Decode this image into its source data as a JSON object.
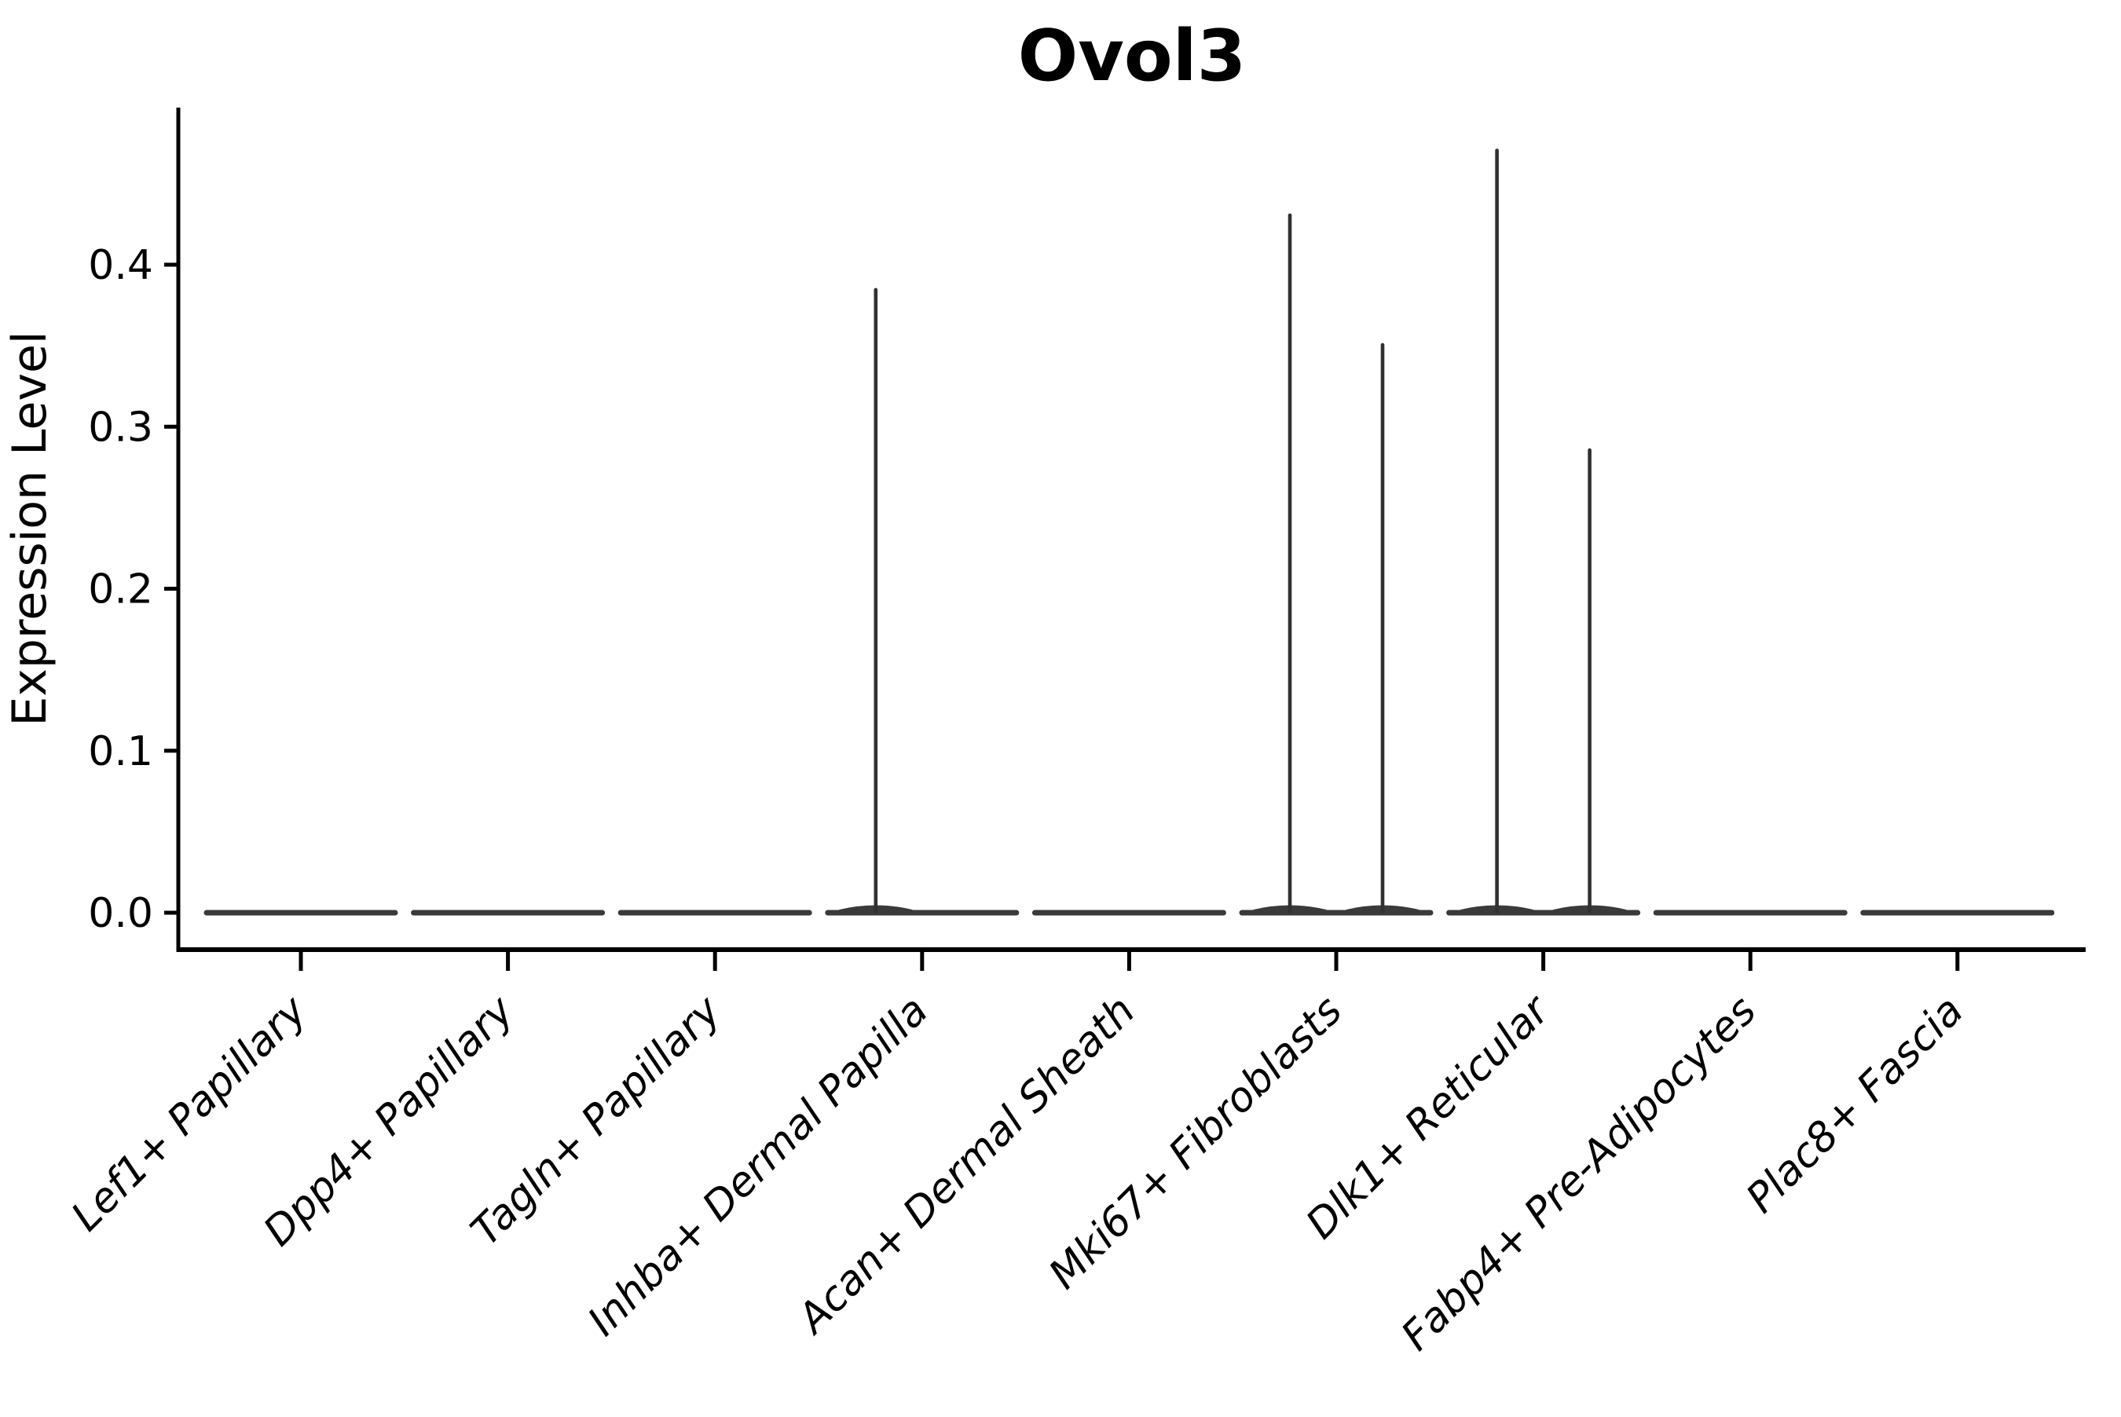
{
  "title": "Ovol3",
  "y_axis": {
    "label": "Expression Level",
    "tick_labels": [
      "0.0",
      "0.1",
      "0.2",
      "0.3",
      "0.4"
    ],
    "tick_values": [
      0.0,
      0.1,
      0.2,
      0.3,
      0.4
    ]
  },
  "x_axis": {
    "categories": [
      "Lef1+ Papillary",
      "Dpp4+ Papillary",
      "Tagln+ Papillary",
      "Inhba+ Dermal Papilla",
      "Acan+ Dermal Sheath",
      "Mki67+ Fibroblasts",
      "Dlk1+ Reticular",
      "Fabp4+ Pre-Adipocytes",
      "Plac8+ Fascia"
    ]
  },
  "chart_data": {
    "type": "violin",
    "title": "Ovol3",
    "xlabel": "",
    "ylabel": "Expression Level",
    "categories": [
      "Lef1+ Papillary",
      "Dpp4+ Papillary",
      "Tagln+ Papillary",
      "Inhba+ Dermal Papilla",
      "Acan+ Dermal Sheath",
      "Mki67+ Fibroblasts",
      "Dlk1+ Reticular",
      "Fabp4+ Pre-Adipocytes",
      "Plac8+ Fascia"
    ],
    "ylim": [
      -0.023,
      0.497
    ],
    "yticks": [
      0.0,
      0.1,
      0.2,
      0.3,
      0.4
    ],
    "grid": false,
    "legend": "none",
    "description": "Violin plot of Ovol3 expression; nearly all cells have 0 expression so each violin collapses to a flat bar at 0, with thin density spikes where rare cells express the gene.",
    "violins": [
      {
        "category": "Lef1+ Papillary",
        "baseline_value": 0.0,
        "spikes": []
      },
      {
        "category": "Dpp4+ Papillary",
        "baseline_value": 0.0,
        "spikes": []
      },
      {
        "category": "Tagln+ Papillary",
        "baseline_value": 0.0,
        "spikes": []
      },
      {
        "category": "Inhba+ Dermal Papilla",
        "baseline_value": 0.0,
        "spikes": [
          {
            "side": "left",
            "max_value": 0.386
          }
        ]
      },
      {
        "category": "Acan+ Dermal Sheath",
        "baseline_value": 0.0,
        "spikes": []
      },
      {
        "category": "Mki67+ Fibroblasts",
        "baseline_value": 0.0,
        "spikes": [
          {
            "side": "left",
            "max_value": 0.432
          },
          {
            "side": "right",
            "max_value": 0.352
          }
        ]
      },
      {
        "category": "Dlk1+ Reticular",
        "baseline_value": 0.0,
        "spikes": [
          {
            "side": "left",
            "max_value": 0.472
          },
          {
            "side": "right",
            "max_value": 0.287
          }
        ]
      },
      {
        "category": "Fabp4+ Pre-Adipocytes",
        "baseline_value": 0.0,
        "spikes": []
      },
      {
        "category": "Plac8+ Fascia",
        "baseline_value": 0.0,
        "spikes": []
      }
    ],
    "colors": {
      "violin": "#3a3a3a",
      "spike": "#303030",
      "axis": "#000000",
      "text": "#000000",
      "background": "#ffffff"
    }
  }
}
